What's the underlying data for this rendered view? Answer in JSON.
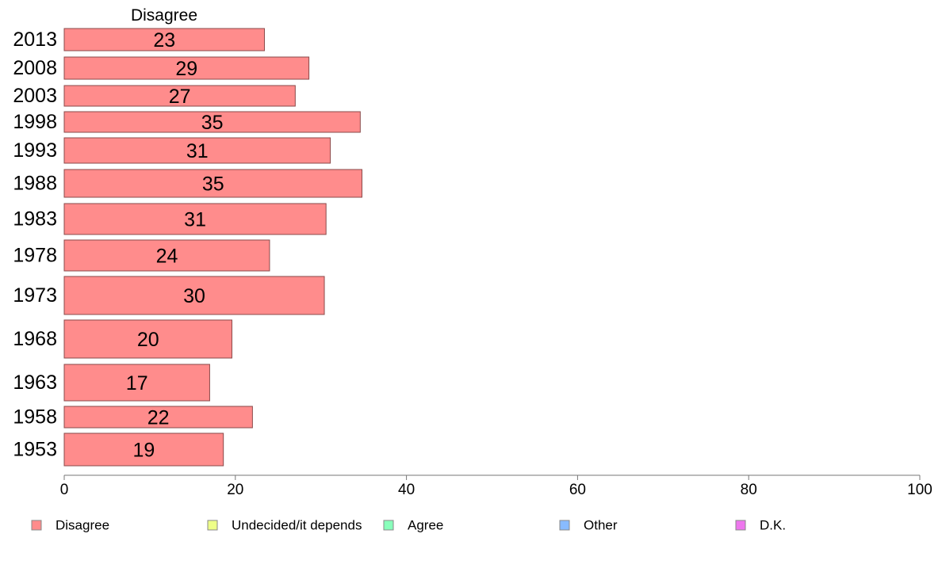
{
  "colors": {
    "Disagree": "#ff8c8c",
    "Undecided/it depends": "#eeff88",
    "Agree": "#88ffbb",
    "Other": "#88bbff",
    "D.K.": "#ee77ee",
    "bar_stroke": "#8a4a4a",
    "axis": "#777777"
  },
  "chart_data": {
    "type": "bar",
    "orientation": "horizontal",
    "title": "Disagree",
    "categories": [
      "2013",
      "2008",
      "2003",
      "1998",
      "1993",
      "1988",
      "1983",
      "1978",
      "1973",
      "1968",
      "1963",
      "1958",
      "1953"
    ],
    "series": [
      {
        "name": "Disagree",
        "values": [
          23.4,
          28.6,
          27.0,
          34.6,
          31.1,
          34.8,
          30.6,
          24.0,
          30.4,
          19.6,
          17.0,
          22.0,
          18.6
        ],
        "labels": [
          "23",
          "29",
          "27",
          "35",
          "31",
          "35",
          "31",
          "24",
          "30",
          "20",
          "17",
          "22",
          "19"
        ]
      }
    ],
    "xlim": [
      0,
      100
    ],
    "xticks": [
      "0",
      "20",
      "40",
      "60",
      "80",
      "100"
    ],
    "xlabel": "",
    "ylabel": "",
    "grid": false,
    "legend": {
      "placement": "bottom",
      "entries": [
        "Disagree",
        "Undecided/it depends",
        "Agree",
        "Other",
        "D.K."
      ]
    }
  }
}
